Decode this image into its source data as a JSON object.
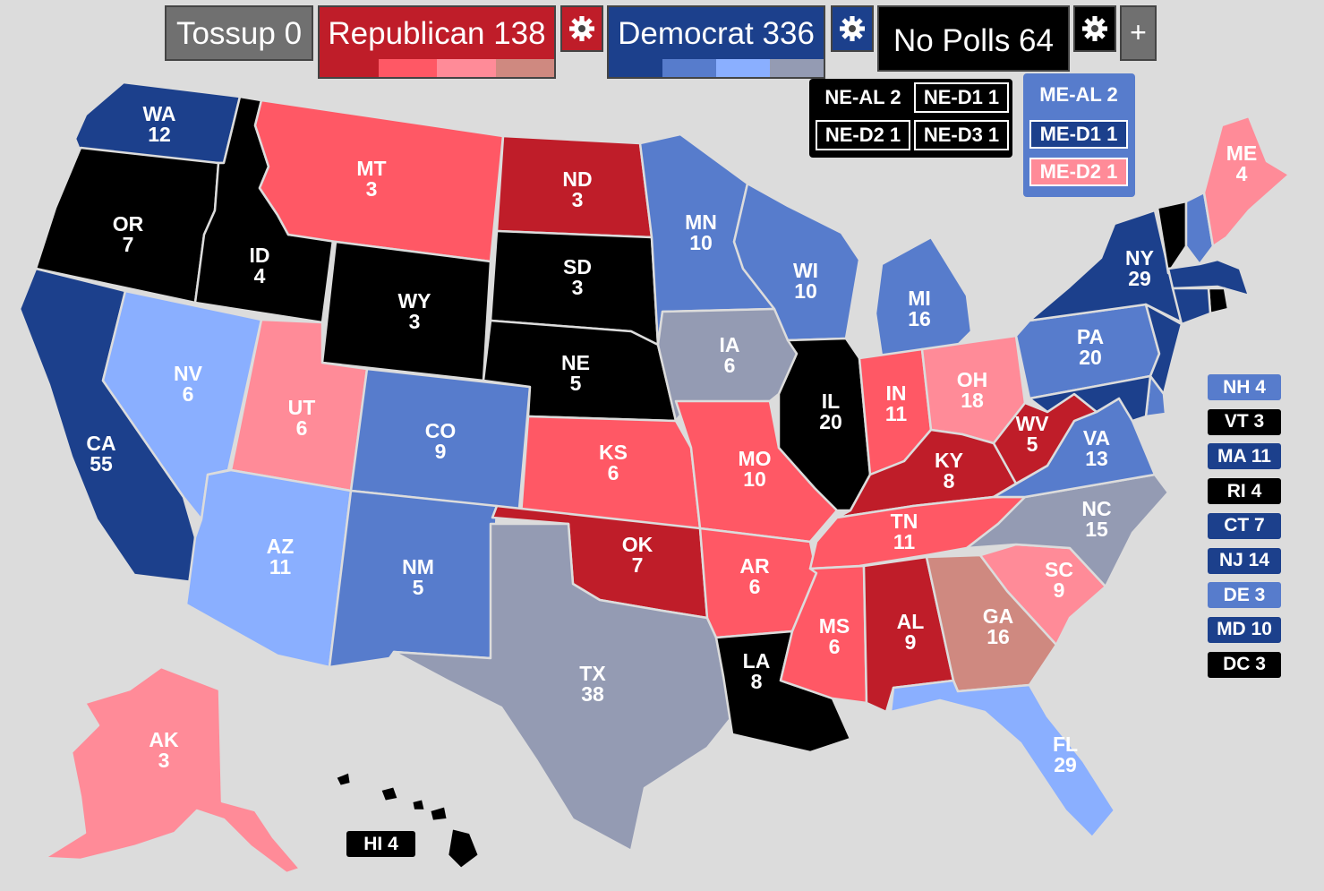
{
  "colors": {
    "tossup": "#707070",
    "rep_solid": "#bf1d29",
    "rep_likely": "#ff5865",
    "rep_lean": "#ff8b98",
    "rep_tilt": "#cf8980",
    "dem_solid": "#1c408c",
    "dem_likely": "#577ccc",
    "dem_lean": "#8aafff",
    "dem_tilt": "#949bb3",
    "no_polls": "#000000",
    "background": "#dcdcdc"
  },
  "header": {
    "tossup": "Tossup 0",
    "republican": "Republican 138",
    "democrat": "Democrat 336",
    "no_polls": "No Polls 64",
    "add": "+",
    "gear_icon": "gear-icon"
  },
  "splits": {
    "ne": {
      "al": {
        "label": "NE-AL 2",
        "color": "#000000"
      },
      "d1": {
        "label": "NE-D1 1",
        "color": "#000000"
      },
      "d2": {
        "label": "NE-D2 1",
        "color": "#000000"
      },
      "d3": {
        "label": "NE-D3 1",
        "color": "#000000"
      }
    },
    "me": {
      "al": {
        "label": "ME-AL 2",
        "color": "#577ccc"
      },
      "d1": {
        "label": "ME-D1 1",
        "color": "#1c408c"
      },
      "d2": {
        "label": "ME-D2 1",
        "color": "#ff8b98"
      }
    }
  },
  "small_states": [
    {
      "label": "NH 4",
      "color": "#577ccc"
    },
    {
      "label": "VT 3",
      "color": "#000000"
    },
    {
      "label": "MA 11",
      "color": "#1c408c"
    },
    {
      "label": "RI 4",
      "color": "#000000"
    },
    {
      "label": "CT 7",
      "color": "#1c408c"
    },
    {
      "label": "NJ 14",
      "color": "#1c408c"
    },
    {
      "label": "DE 3",
      "color": "#577ccc"
    },
    {
      "label": "MD 10",
      "color": "#1c408c"
    },
    {
      "label": "DC 3",
      "color": "#000000"
    }
  ],
  "hi_tag": {
    "label": "HI 4",
    "color": "#000000"
  },
  "states": {
    "WA": {
      "abbr": "WA",
      "ev": "12",
      "color": "#1c408c"
    },
    "OR": {
      "abbr": "OR",
      "ev": "7",
      "color": "#000000"
    },
    "CA": {
      "abbr": "CA",
      "ev": "55",
      "color": "#1c408c"
    },
    "ID": {
      "abbr": "ID",
      "ev": "4",
      "color": "#000000"
    },
    "NV": {
      "abbr": "NV",
      "ev": "6",
      "color": "#8aafff"
    },
    "MT": {
      "abbr": "MT",
      "ev": "3",
      "color": "#ff5865"
    },
    "WY": {
      "abbr": "WY",
      "ev": "3",
      "color": "#000000"
    },
    "UT": {
      "abbr": "UT",
      "ev": "6",
      "color": "#ff8b98"
    },
    "AZ": {
      "abbr": "AZ",
      "ev": "11",
      "color": "#8aafff"
    },
    "CO": {
      "abbr": "CO",
      "ev": "9",
      "color": "#577ccc"
    },
    "NM": {
      "abbr": "NM",
      "ev": "5",
      "color": "#577ccc"
    },
    "ND": {
      "abbr": "ND",
      "ev": "3",
      "color": "#bf1d29"
    },
    "SD": {
      "abbr": "SD",
      "ev": "3",
      "color": "#000000"
    },
    "NE": {
      "abbr": "NE",
      "ev": "5",
      "color": "#000000"
    },
    "KS": {
      "abbr": "KS",
      "ev": "6",
      "color": "#ff5865"
    },
    "OK": {
      "abbr": "OK",
      "ev": "7",
      "color": "#bf1d29"
    },
    "TX": {
      "abbr": "TX",
      "ev": "38",
      "color": "#949bb3"
    },
    "MN": {
      "abbr": "MN",
      "ev": "10",
      "color": "#577ccc"
    },
    "IA": {
      "abbr": "IA",
      "ev": "6",
      "color": "#949bb3"
    },
    "MO": {
      "abbr": "MO",
      "ev": "10",
      "color": "#ff5865"
    },
    "AR": {
      "abbr": "AR",
      "ev": "6",
      "color": "#ff5865"
    },
    "LA": {
      "abbr": "LA",
      "ev": "8",
      "color": "#000000"
    },
    "WI": {
      "abbr": "WI",
      "ev": "10",
      "color": "#577ccc"
    },
    "IL": {
      "abbr": "IL",
      "ev": "20",
      "color": "#000000"
    },
    "MI": {
      "abbr": "MI",
      "ev": "16",
      "color": "#577ccc"
    },
    "IN": {
      "abbr": "IN",
      "ev": "11",
      "color": "#ff5865"
    },
    "OH": {
      "abbr": "OH",
      "ev": "18",
      "color": "#ff8b98"
    },
    "KY": {
      "abbr": "KY",
      "ev": "8",
      "color": "#bf1d29"
    },
    "TN": {
      "abbr": "TN",
      "ev": "11",
      "color": "#ff5865"
    },
    "MS": {
      "abbr": "MS",
      "ev": "6",
      "color": "#ff5865"
    },
    "AL": {
      "abbr": "AL",
      "ev": "9",
      "color": "#bf1d29"
    },
    "GA": {
      "abbr": "GA",
      "ev": "16",
      "color": "#cf8980"
    },
    "FL": {
      "abbr": "FL",
      "ev": "29",
      "color": "#8aafff"
    },
    "SC": {
      "abbr": "SC",
      "ev": "9",
      "color": "#ff8b98"
    },
    "NC": {
      "abbr": "NC",
      "ev": "15",
      "color": "#949bb3"
    },
    "VA": {
      "abbr": "VA",
      "ev": "13",
      "color": "#577ccc"
    },
    "WV": {
      "abbr": "WV",
      "ev": "5",
      "color": "#bf1d29"
    },
    "PA": {
      "abbr": "PA",
      "ev": "20",
      "color": "#577ccc"
    },
    "NY": {
      "abbr": "NY",
      "ev": "29",
      "color": "#1c408c"
    },
    "ME": {
      "abbr": "ME",
      "ev": "4",
      "color": "#ff8b98"
    },
    "AK": {
      "abbr": "AK",
      "ev": "3",
      "color": "#ff8b98"
    },
    "HI": {
      "color": "#000000"
    },
    "VT": {
      "color": "#000000"
    },
    "NH": {
      "color": "#577ccc"
    },
    "MA": {
      "color": "#1c408c"
    },
    "RI": {
      "color": "#000000"
    },
    "CT": {
      "color": "#1c408c"
    },
    "NJ": {
      "color": "#1c408c"
    },
    "DE": {
      "color": "#577ccc"
    },
    "MD": {
      "color": "#1c408c"
    }
  }
}
